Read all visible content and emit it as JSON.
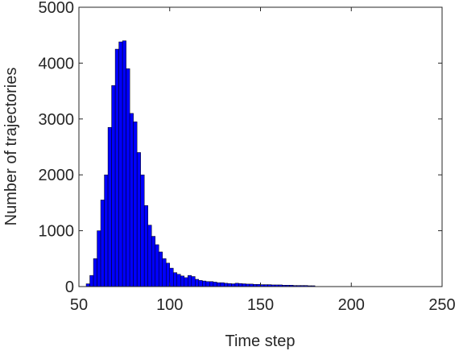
{
  "chart_data": {
    "type": "histogram",
    "xlabel": "Time step",
    "ylabel": "Number of trajectories",
    "bins": [
      54,
      56,
      58,
      60,
      62,
      64,
      66,
      68,
      70,
      72,
      74,
      76,
      78,
      80,
      82,
      84,
      86,
      88,
      90,
      92,
      94,
      96,
      98,
      100,
      102,
      104,
      106,
      108,
      110,
      112,
      114,
      116,
      118,
      120,
      122,
      124,
      126,
      128,
      130,
      132,
      134,
      136,
      138,
      140,
      142,
      144,
      146,
      148,
      150,
      152,
      154,
      156,
      158,
      160,
      162,
      164,
      166,
      168,
      170,
      172,
      174,
      176,
      178,
      180
    ],
    "values": [
      50,
      200,
      500,
      1000,
      1550,
      2000,
      2850,
      3600,
      4250,
      4380,
      4400,
      3900,
      3100,
      2950,
      2400,
      2000,
      1450,
      1100,
      900,
      750,
      620,
      500,
      420,
      330,
      250,
      220,
      190,
      160,
      200,
      180,
      130,
      110,
      100,
      90,
      90,
      80,
      70,
      70,
      60,
      55,
      50,
      60,
      55,
      50,
      45,
      45,
      40,
      40,
      35,
      35,
      35,
      30,
      30,
      30,
      25,
      25,
      25,
      20,
      20,
      20,
      20,
      15,
      15
    ],
    "color": "#0000ff",
    "xlim": [
      50,
      250
    ],
    "xticks": [
      50,
      100,
      150,
      200,
      250
    ],
    "ylim": [
      0,
      5000
    ],
    "yticks": [
      0,
      1000,
      2000,
      3000,
      4000,
      5000
    ]
  }
}
